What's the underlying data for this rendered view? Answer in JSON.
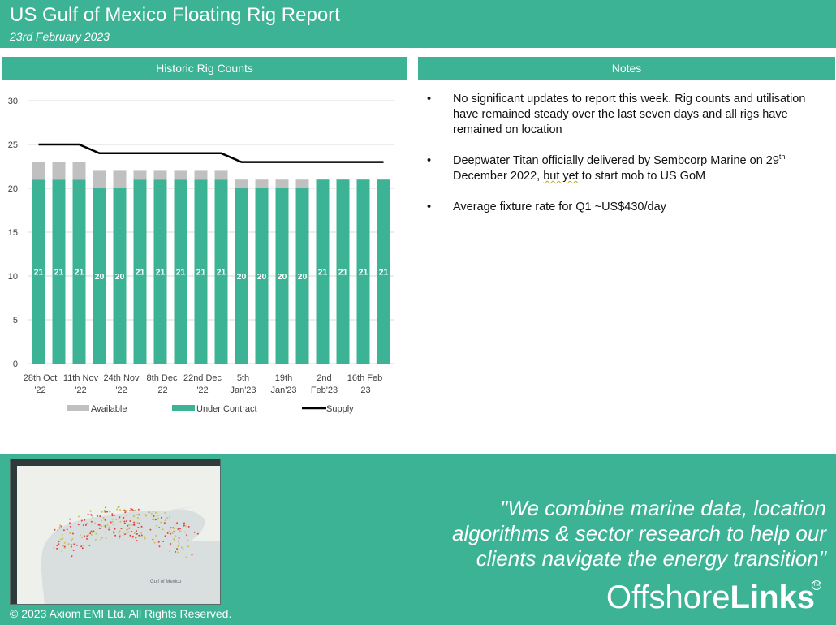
{
  "header": {
    "title": "US Gulf of Mexico Floating Rig Report",
    "date": "23rd February 2023"
  },
  "chart_panel": {
    "title": "Historic Rig Counts"
  },
  "notes_panel": {
    "title": "Notes",
    "items": [
      "No significant updates to report this week. Rig counts and utilisation have remained steady over the last seven days and all rigs have remained on location",
      "Deepwater Titan officially delivered by Sembcorp Marine on 29th December 2022, but yet to start mob to US GoM",
      "Average fixture rate for Q1 ~US$430/day"
    ]
  },
  "chart_data": {
    "type": "bar",
    "stacked": true,
    "x_tick_labels": [
      [
        "28th Oct",
        "'22"
      ],
      [
        "11th Nov",
        "'22"
      ],
      [
        "24th Nov",
        "'22"
      ],
      [
        "8th Dec",
        "'22"
      ],
      [
        "22nd Dec",
        "'22"
      ],
      [
        "5th",
        "Jan'23"
      ],
      [
        "19th",
        "Jan'23"
      ],
      [
        "2nd",
        "Feb'23"
      ],
      [
        "16th Feb",
        "'23"
      ]
    ],
    "series": [
      {
        "name": "Under Contract",
        "color": "#3cb394",
        "values": [
          21,
          21,
          21,
          20,
          20,
          21,
          21,
          21,
          21,
          21,
          20,
          20,
          20,
          20,
          21,
          21,
          21,
          21
        ]
      },
      {
        "name": "Available",
        "color": "#c0c0c0",
        "values": [
          2,
          2,
          2,
          2,
          2,
          1,
          1,
          1,
          1,
          1,
          1,
          1,
          1,
          1,
          0,
          0,
          0,
          0
        ]
      },
      {
        "name": "Supply",
        "type": "line",
        "color": "#000000",
        "values": [
          25,
          25,
          25,
          24,
          24,
          24,
          24,
          24,
          24,
          24,
          23,
          23,
          23,
          23,
          23,
          23,
          23,
          23
        ]
      }
    ],
    "ylim": [
      0,
      30
    ],
    "yticks": [
      0,
      5,
      10,
      15,
      20,
      25,
      30
    ],
    "grid": "horizontal",
    "legend": "bottom",
    "data_labels": "Under Contract"
  },
  "footer": {
    "quote_lines": [
      "\"We  combine marine data, location",
      "algorithms & sector research to help our",
      "clients navigate the energy transition\""
    ],
    "logo_light": "Offshore",
    "logo_bold": "Links",
    "logo_mark": "TM",
    "copyright": "© 2023 Axiom EMI Ltd. All Rights Reserved.",
    "map_label": "Gulf of Mexico"
  },
  "colors": {
    "accent": "#3cb394",
    "available": "#c0c0c0",
    "supply": "#000000"
  }
}
